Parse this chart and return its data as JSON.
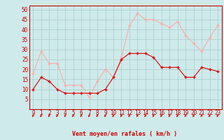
{
  "x": [
    0,
    1,
    2,
    3,
    4,
    5,
    6,
    7,
    8,
    9,
    10,
    11,
    12,
    13,
    14,
    15,
    16,
    17,
    18,
    19,
    20,
    21,
    22,
    23
  ],
  "wind_avg": [
    10,
    16,
    14,
    10,
    8,
    8,
    8,
    8,
    8,
    10,
    16,
    25,
    28,
    28,
    28,
    26,
    21,
    21,
    21,
    16,
    16,
    21,
    20,
    19
  ],
  "wind_gust": [
    18,
    29,
    23,
    23,
    12,
    12,
    12,
    6,
    14,
    20,
    16,
    26,
    42,
    48,
    45,
    45,
    43,
    41,
    44,
    37,
    33,
    29,
    36,
    42
  ],
  "avg_color": "#dd0000",
  "gust_color": "#ffaaaa",
  "bg_color": "#ceeaea",
  "grid_color": "#afd0d0",
  "xlabel": "Vent moyen/en rafales ( km/h )",
  "ylim": [
    0,
    52
  ],
  "yticks": [
    5,
    10,
    15,
    20,
    25,
    30,
    35,
    40,
    45,
    50
  ],
  "tick_color": "#cc0000",
  "spine_color": "#cc0000",
  "label_fontsize": 6,
  "tick_fontsize": 5.5
}
